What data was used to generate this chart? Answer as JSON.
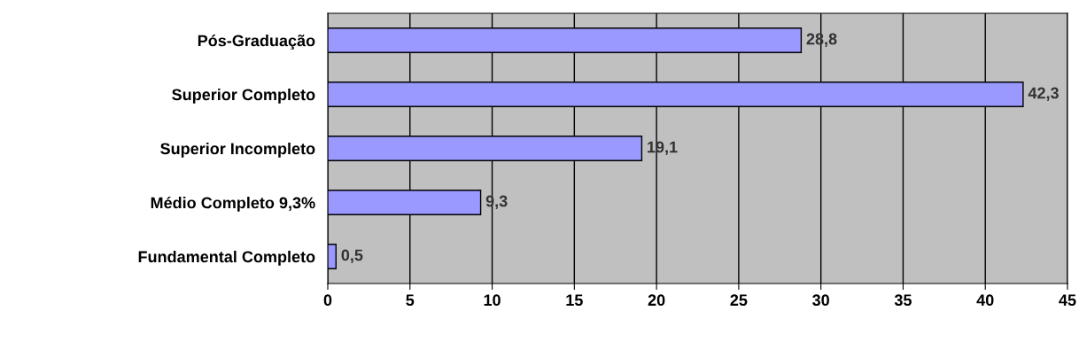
{
  "chart_data": {
    "type": "bar",
    "orientation": "horizontal",
    "categories": [
      "Pós-Graduação",
      "Superior Completo",
      "Superior Incompleto",
      "Médio Completo 9,3%",
      "Fundamental Completo"
    ],
    "values": [
      28.8,
      42.3,
      19.1,
      9.3,
      0.5
    ],
    "value_labels": [
      "28,8",
      "42,3",
      "19,1",
      "9,3",
      "0,5"
    ],
    "color": "#9999ff",
    "xlim": [
      0,
      45
    ],
    "xticks": [
      0,
      5,
      10,
      15,
      20,
      25,
      30,
      35,
      40,
      45
    ],
    "grid": "x"
  }
}
